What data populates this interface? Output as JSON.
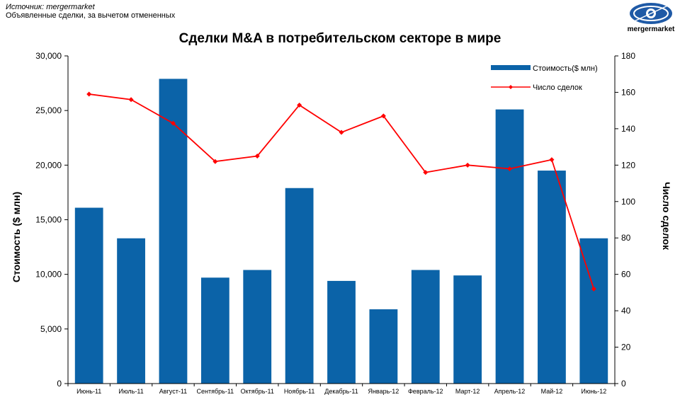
{
  "header": {
    "source": "Источник: mergermarket",
    "note": "Объявленные сделки, за вычетом отмененных",
    "logo_text": "mergermarket"
  },
  "colors": {
    "bar": "#0b63a8",
    "line": "#ff0000"
  },
  "chart_data": {
    "type": "bar",
    "title": "Сделки M&A в потребительском секторе в мире",
    "categories": [
      "Июнь-11",
      "Июль-11",
      "Август-11",
      "Сентябрь-11",
      "Октябрь-11",
      "Ноябрь-11",
      "Декабрь-11",
      "Январь-12",
      "Февраль-12",
      "Март-12",
      "Апрель-12",
      "Май-12",
      "Июнь-12"
    ],
    "series": [
      {
        "name": "Стоимость($ млн)",
        "type": "bar",
        "axis": "left",
        "values": [
          16100,
          13300,
          27900,
          9700,
          10400,
          17900,
          9400,
          6800,
          10400,
          9900,
          25100,
          19500,
          13300
        ]
      },
      {
        "name": "Число сделок",
        "type": "line",
        "axis": "right",
        "values": [
          159,
          156,
          143,
          122,
          125,
          153,
          138,
          147,
          116,
          120,
          118,
          123,
          52
        ]
      }
    ],
    "ylabel": "Стоимость ($ млн)",
    "y2label": "Число сделок",
    "ylim": [
      0,
      30000
    ],
    "y2lim": [
      0,
      180
    ],
    "yticks": [
      "0",
      "5,000",
      "10,000",
      "15,000",
      "20,000",
      "25,000",
      "30,000"
    ],
    "y2ticks": [
      "0",
      "20",
      "40",
      "60",
      "80",
      "100",
      "120",
      "140",
      "160",
      "180"
    ],
    "legend": "top-right",
    "grid": false
  }
}
